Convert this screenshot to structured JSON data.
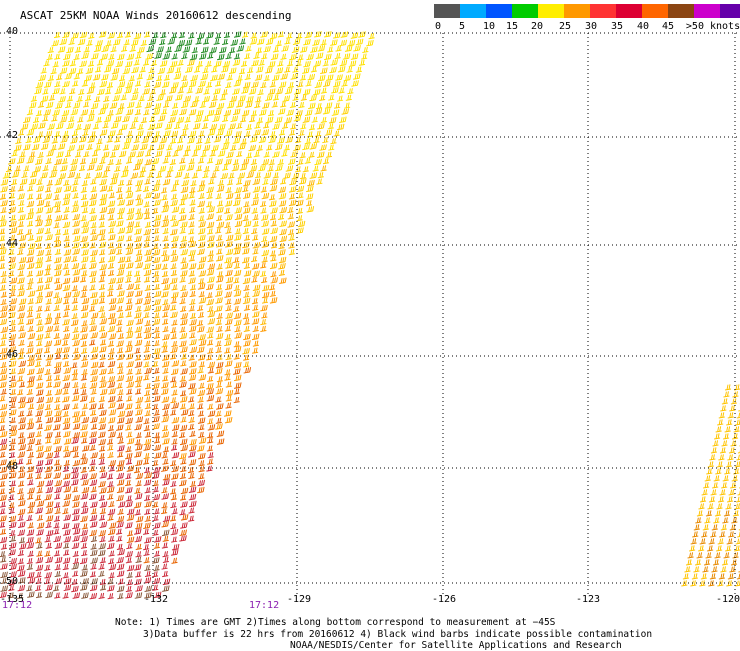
{
  "title": "ASCAT 25KM NOAA Winds 20160612 descending",
  "legend": {
    "colors": [
      "#555555",
      "#00aaff",
      "#0055ff",
      "#00cc00",
      "#ffee00",
      "#ff9900",
      "#ff3333",
      "#dd0033",
      "#ff6600",
      "#8b4513",
      "#cc00cc",
      "#6600aa"
    ],
    "labels": [
      "0",
      "5",
      "10",
      "15",
      "20",
      "25",
      "30",
      "35",
      "40",
      "45",
      ">50 knots"
    ]
  },
  "latitudes": [
    "40",
    "42",
    "44",
    "46",
    "48",
    "50"
  ],
  "longitudes": [
    "-135",
    "-132",
    "-129",
    "-126",
    "-123",
    "-120"
  ],
  "times": [
    "17:12",
    "17:12"
  ],
  "notes": [
    "Note: 1) Times are GMT 2)Times along bottom correspond to measurement at −45S",
    "3)Data buffer is 22 hrs from 20160612 4) Black wind barbs indicate possible contamination",
    "NOAA/NESDIS/Center for Satellite Applications and Research"
  ],
  "swath": {
    "main_color_bands": [
      "#ffe000",
      "#ffd000",
      "#ffb800",
      "#ff9a00",
      "#e86400",
      "#cc2a3a",
      "#8b5a3c"
    ],
    "top_strip_color": "#228b22"
  }
}
